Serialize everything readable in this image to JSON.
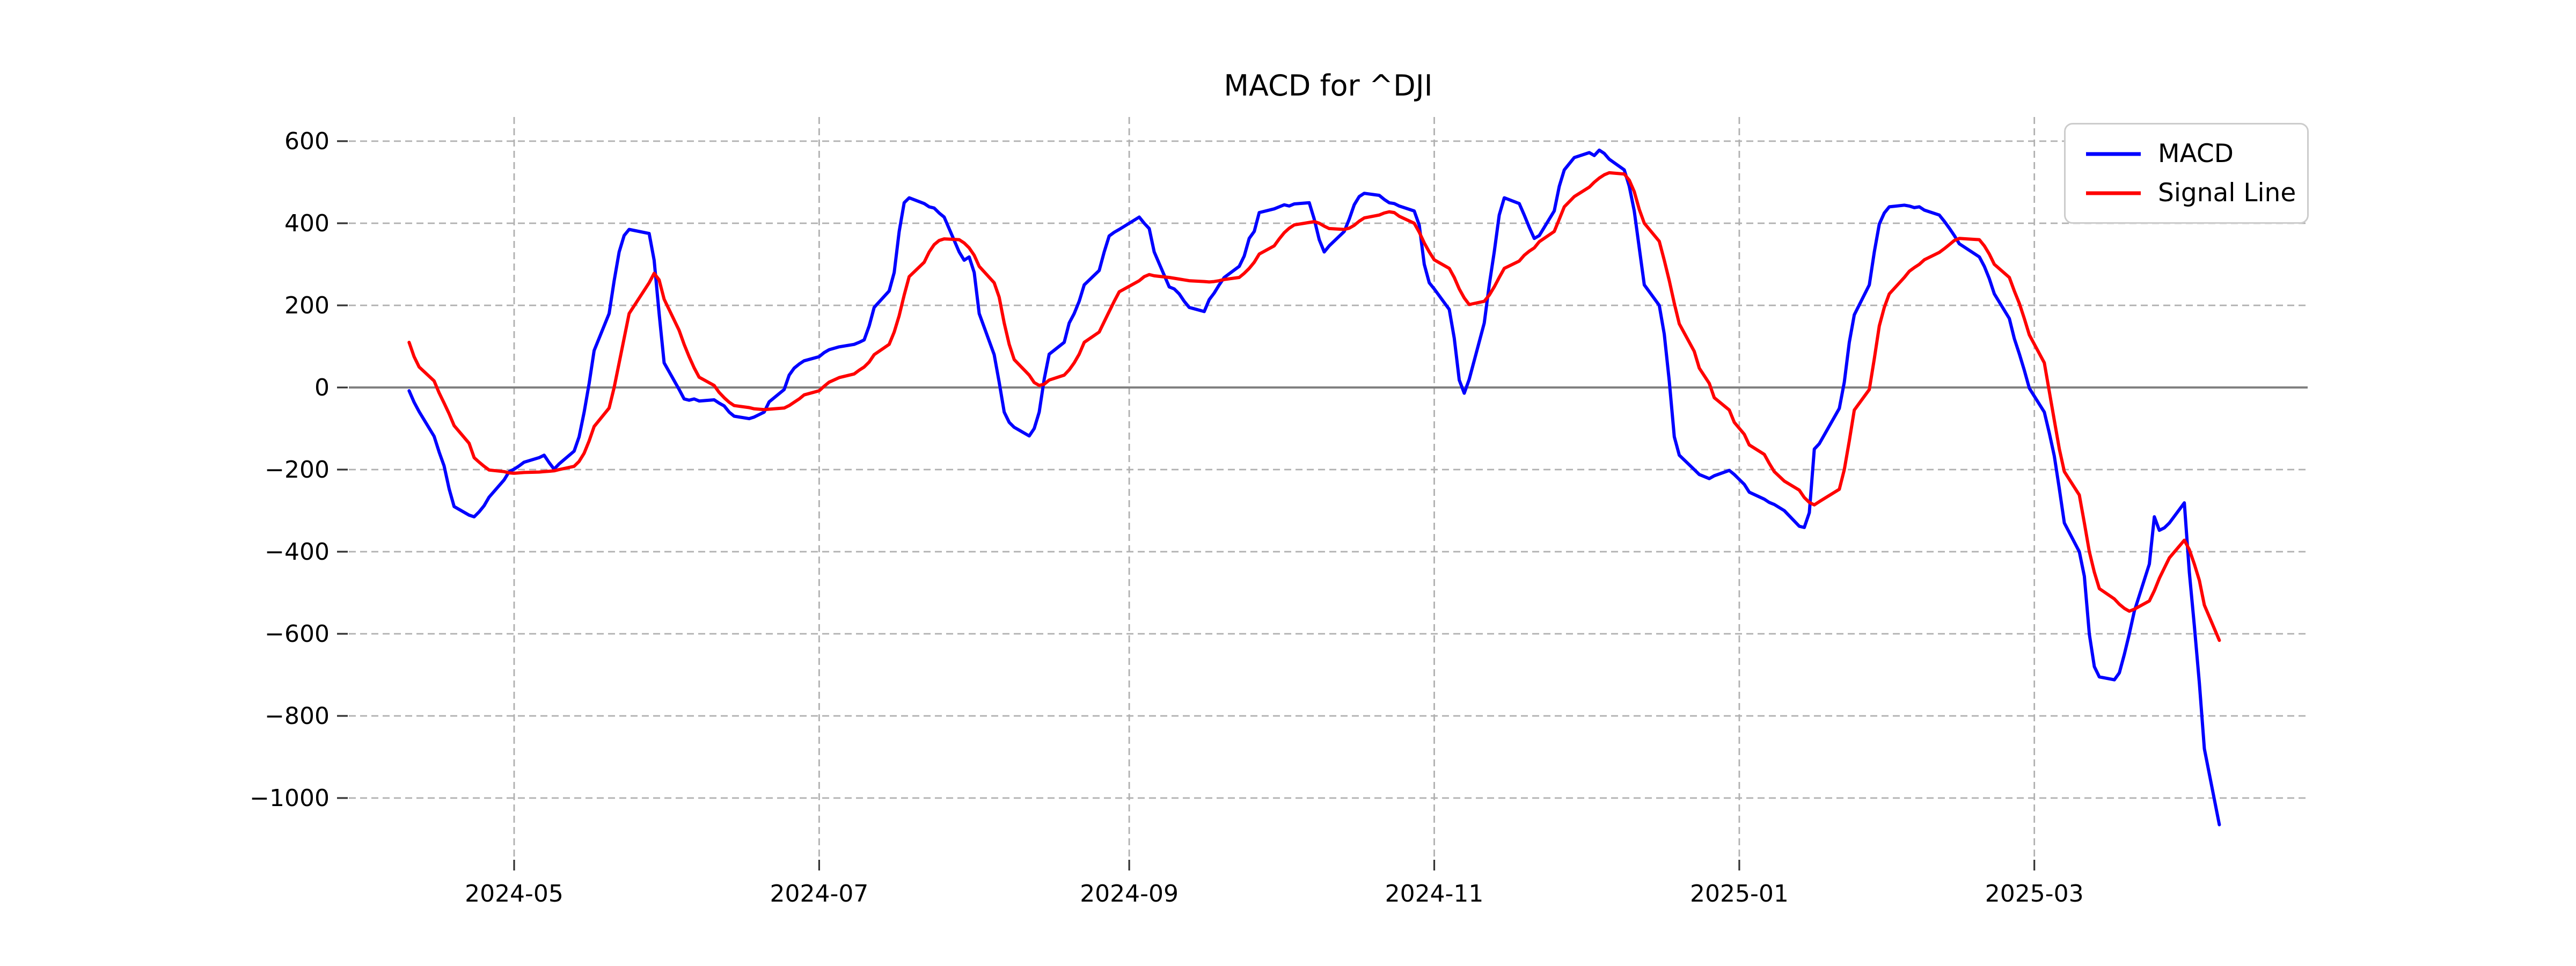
{
  "title": "MACD for ^DJI",
  "legend": {
    "items": [
      {
        "label": "MACD",
        "color": "#0000ff"
      },
      {
        "label": "Signal Line",
        "color": "#ff0000"
      }
    ]
  },
  "chart_data": {
    "type": "line",
    "title": "MACD for ^DJI",
    "xlabel": "",
    "ylabel": "",
    "grid": true,
    "grid_style": "dashed",
    "grid_color": "#b0b0b0",
    "zero_line": true,
    "zero_line_color": "#808080",
    "background": "#ffffff",
    "legend_position": "upper right",
    "ylim": [
      -1148,
      659
    ],
    "xlim": [
      "2024-03-29",
      "2025-04-24"
    ],
    "y_ticks": [
      {
        "value": 600,
        "label": "600"
      },
      {
        "value": 400,
        "label": "400"
      },
      {
        "value": 200,
        "label": "200"
      },
      {
        "value": 0,
        "label": "0"
      },
      {
        "value": -200,
        "label": "−200"
      },
      {
        "value": -400,
        "label": "−400"
      },
      {
        "value": -600,
        "label": "−600"
      },
      {
        "value": -800,
        "label": "−800"
      },
      {
        "value": -1000,
        "label": "−1000"
      }
    ],
    "x_ticks": [
      {
        "date": "2024-05-01",
        "label": "2024-05"
      },
      {
        "date": "2024-07-01",
        "label": "2024-07"
      },
      {
        "date": "2024-09-01",
        "label": "2024-09"
      },
      {
        "date": "2024-11-01",
        "label": "2024-11"
      },
      {
        "date": "2025-01-01",
        "label": "2025-01"
      },
      {
        "date": "2025-03-01",
        "label": "2025-03"
      }
    ],
    "dates": [
      "2024-04-10",
      "2024-04-11",
      "2024-04-12",
      "2024-04-15",
      "2024-04-16",
      "2024-04-17",
      "2024-04-18",
      "2024-04-19",
      "2024-04-22",
      "2024-04-23",
      "2024-04-24",
      "2024-04-25",
      "2024-04-26",
      "2024-04-29",
      "2024-04-30",
      "2024-05-01",
      "2024-05-02",
      "2024-05-03",
      "2024-05-06",
      "2024-05-07",
      "2024-05-08",
      "2024-05-09",
      "2024-05-10",
      "2024-05-13",
      "2024-05-14",
      "2024-05-15",
      "2024-05-16",
      "2024-05-17",
      "2024-05-20",
      "2024-05-21",
      "2024-05-22",
      "2024-05-23",
      "2024-05-24",
      "2024-05-28",
      "2024-05-29",
      "2024-05-30",
      "2024-05-31",
      "2024-06-03",
      "2024-06-04",
      "2024-06-05",
      "2024-06-06",
      "2024-06-07",
      "2024-06-10",
      "2024-06-11",
      "2024-06-12",
      "2024-06-13",
      "2024-06-14",
      "2024-06-17",
      "2024-06-18",
      "2024-06-20",
      "2024-06-21",
      "2024-06-24",
      "2024-06-25",
      "2024-06-26",
      "2024-06-27",
      "2024-06-28",
      "2024-07-01",
      "2024-07-02",
      "2024-07-03",
      "2024-07-05",
      "2024-07-08",
      "2024-07-09",
      "2024-07-10",
      "2024-07-11",
      "2024-07-12",
      "2024-07-15",
      "2024-07-16",
      "2024-07-17",
      "2024-07-18",
      "2024-07-19",
      "2024-07-22",
      "2024-07-23",
      "2024-07-24",
      "2024-07-25",
      "2024-07-26",
      "2024-07-29",
      "2024-07-30",
      "2024-07-31",
      "2024-08-01",
      "2024-08-02",
      "2024-08-05",
      "2024-08-06",
      "2024-08-07",
      "2024-08-08",
      "2024-08-09",
      "2024-08-12",
      "2024-08-13",
      "2024-08-14",
      "2024-08-15",
      "2024-08-16",
      "2024-08-19",
      "2024-08-20",
      "2024-08-21",
      "2024-08-22",
      "2024-08-23",
      "2024-08-26",
      "2024-08-27",
      "2024-08-28",
      "2024-08-29",
      "2024-08-30",
      "2024-09-03",
      "2024-09-04",
      "2024-09-05",
      "2024-09-06",
      "2024-09-09",
      "2024-09-10",
      "2024-09-11",
      "2024-09-12",
      "2024-09-13",
      "2024-09-16",
      "2024-09-17",
      "2024-09-18",
      "2024-09-19",
      "2024-09-20",
      "2024-09-23",
      "2024-09-24",
      "2024-09-25",
      "2024-09-26",
      "2024-09-27",
      "2024-09-30",
      "2024-10-01",
      "2024-10-02",
      "2024-10-03",
      "2024-10-04",
      "2024-10-07",
      "2024-10-08",
      "2024-10-09",
      "2024-10-10",
      "2024-10-11",
      "2024-10-14",
      "2024-10-15",
      "2024-10-16",
      "2024-10-17",
      "2024-10-18",
      "2024-10-21",
      "2024-10-22",
      "2024-10-23",
      "2024-10-24",
      "2024-10-25",
      "2024-10-28",
      "2024-10-29",
      "2024-10-30",
      "2024-10-31",
      "2024-11-01",
      "2024-11-04",
      "2024-11-05",
      "2024-11-06",
      "2024-11-07",
      "2024-11-08",
      "2024-11-11",
      "2024-11-12",
      "2024-11-13",
      "2024-11-14",
      "2024-11-15",
      "2024-11-18",
      "2024-11-19",
      "2024-11-20",
      "2024-11-21",
      "2024-11-22",
      "2024-11-25",
      "2024-11-26",
      "2024-11-27",
      "2024-11-29",
      "2024-12-02",
      "2024-12-03",
      "2024-12-04",
      "2024-12-05",
      "2024-12-06",
      "2024-12-09",
      "2024-12-10",
      "2024-12-11",
      "2024-12-12",
      "2024-12-13",
      "2024-12-16",
      "2024-12-17",
      "2024-12-18",
      "2024-12-19",
      "2024-12-20",
      "2024-12-23",
      "2024-12-24",
      "2024-12-26",
      "2024-12-27",
      "2024-12-30",
      "2024-12-31",
      "2025-01-02",
      "2025-01-03",
      "2025-01-06",
      "2025-01-07",
      "2025-01-08",
      "2025-01-10",
      "2025-01-13",
      "2025-01-14",
      "2025-01-15",
      "2025-01-16",
      "2025-01-17",
      "2025-01-21",
      "2025-01-22",
      "2025-01-23",
      "2025-01-24",
      "2025-01-27",
      "2025-01-28",
      "2025-01-29",
      "2025-01-30",
      "2025-01-31",
      "2025-02-03",
      "2025-02-04",
      "2025-02-05",
      "2025-02-06",
      "2025-02-07",
      "2025-02-10",
      "2025-02-11",
      "2025-02-12",
      "2025-02-13",
      "2025-02-14",
      "2025-02-18",
      "2025-02-19",
      "2025-02-20",
      "2025-02-21",
      "2025-02-24",
      "2025-02-25",
      "2025-02-26",
      "2025-02-27",
      "2025-02-28",
      "2025-03-03",
      "2025-03-04",
      "2025-03-05",
      "2025-03-06",
      "2025-03-07",
      "2025-03-10",
      "2025-03-11",
      "2025-03-12",
      "2025-03-13",
      "2025-03-14",
      "2025-03-17",
      "2025-03-18",
      "2025-03-19",
      "2025-03-20",
      "2025-03-21",
      "2025-03-24",
      "2025-03-25",
      "2025-03-26",
      "2025-03-27",
      "2025-03-28",
      "2025-03-31",
      "2025-04-01",
      "2025-04-02",
      "2025-04-03",
      "2025-04-04",
      "2025-04-07"
    ],
    "series": [
      {
        "name": "MACD",
        "color": "#0000ff",
        "values": [
          -8,
          -36,
          -59,
          -119,
          -157,
          -191,
          -247,
          -290,
          -311,
          -315,
          -303,
          -288,
          -267,
          -225,
          -205,
          -199,
          -191,
          -182,
          -171,
          -165,
          -183,
          -199,
          -186,
          -155,
          -120,
          -60,
          10,
          90,
          180,
          260,
          330,
          370,
          385,
          375,
          310,
          180,
          60,
          -5,
          -28,
          -31,
          -28,
          -33,
          -30,
          -38,
          -45,
          -60,
          -70,
          -76,
          -72,
          -60,
          -35,
          -5,
          30,
          47,
          57,
          65,
          75,
          85,
          92,
          99,
          105,
          110,
          116,
          150,
          195,
          235,
          280,
          380,
          450,
          462,
          448,
          440,
          437,
          425,
          415,
          330,
          310,
          318,
          280,
          180,
          80,
          13,
          -60,
          -85,
          -97,
          -118,
          -100,
          -60,
          20,
          81,
          110,
          157,
          180,
          210,
          250,
          285,
          330,
          369,
          378,
          385,
          415,
          400,
          387,
          330,
          245,
          240,
          228,
          210,
          195,
          185,
          214,
          230,
          250,
          268,
          295,
          320,
          363,
          380,
          426,
          435,
          440,
          445,
          442,
          447,
          450,
          410,
          360,
          330,
          345,
          380,
          410,
          445,
          465,
          473,
          468,
          458,
          450,
          448,
          442,
          430,
          395,
          300,
          255,
          240,
          190,
          120,
          18,
          -14,
          20,
          157,
          250,
          330,
          420,
          462,
          448,
          420,
          390,
          363,
          370,
          430,
          490,
          530,
          560,
          572,
          565,
          578,
          570,
          556,
          530,
          490,
          430,
          340,
          250,
          200,
          130,
          15,
          -120,
          -165,
          -200,
          -212,
          -222,
          -215,
          -202,
          -212,
          -236,
          -255,
          -272,
          -280,
          -285,
          -300,
          -338,
          -341,
          -305,
          -150,
          -137,
          -51,
          13,
          110,
          177,
          250,
          330,
          398,
          425,
          440,
          444,
          442,
          438,
          440,
          432,
          420,
          405,
          388,
          370,
          350,
          318,
          295,
          265,
          228,
          168,
          119,
          82,
          42,
          -2,
          -60,
          -111,
          -167,
          -247,
          -330,
          -400,
          -460,
          -601,
          -680,
          -705,
          -712,
          -695,
          -650,
          -600,
          -545,
          -430,
          -315,
          -348,
          -342,
          -330,
          -281,
          -450,
          -580,
          -720,
          -880,
          -1065
        ]
      },
      {
        "name": "Signal Line",
        "color": "#ff0000",
        "values": [
          110,
          75,
          50,
          16,
          -13,
          -38,
          -64,
          -93,
          -136,
          -171,
          -182,
          -192,
          -201,
          -205,
          -208,
          -209,
          -208,
          -207,
          -206,
          -205,
          -204,
          -203,
          -200,
          -192,
          -180,
          -160,
          -130,
          -95,
          -50,
          0,
          60,
          120,
          180,
          255,
          278,
          262,
          215,
          139,
          105,
          75,
          48,
          25,
          5,
          -12,
          -25,
          -36,
          -44,
          -49,
          -52,
          -54,
          -53,
          -50,
          -44,
          -36,
          -28,
          -18,
          -8,
          3,
          13,
          24,
          33,
          42,
          50,
          62,
          80,
          105,
          135,
          175,
          225,
          270,
          305,
          330,
          348,
          358,
          362,
          360,
          352,
          340,
          322,
          295,
          255,
          220,
          157,
          105,
          68,
          30,
          12,
          5,
          8,
          18,
          30,
          43,
          60,
          81,
          110,
          135,
          160,
          185,
          210,
          233,
          260,
          270,
          275,
          272,
          268,
          266,
          264,
          262,
          260,
          258,
          257,
          258,
          260,
          263,
          268,
          278,
          290,
          305,
          325,
          345,
          362,
          377,
          388,
          396,
          402,
          404,
          400,
          393,
          387,
          385,
          388,
          395,
          405,
          413,
          420,
          425,
          428,
          426,
          417,
          400,
          378,
          352,
          330,
          311,
          290,
          268,
          240,
          218,
          202,
          210,
          225,
          245,
          268,
          290,
          308,
          322,
          332,
          340,
          355,
          380,
          410,
          440,
          465,
          488,
          500,
          510,
          518,
          523,
          520,
          505,
          477,
          434,
          400,
          356,
          310,
          260,
          205,
          155,
          88,
          47,
          10,
          -25,
          -55,
          -85,
          -114,
          -140,
          -163,
          -185,
          -205,
          -228,
          -250,
          -268,
          -280,
          -286,
          -278,
          -248,
          -200,
          -130,
          -55,
          -5,
          70,
          150,
          195,
          228,
          268,
          283,
          292,
          300,
          311,
          329,
          338,
          348,
          358,
          363,
          360,
          345,
          325,
          300,
          268,
          235,
          205,
          168,
          128,
          60,
          -10,
          -80,
          -150,
          -205,
          -262,
          -330,
          -400,
          -450,
          -490,
          -515,
          -528,
          -538,
          -545,
          -540,
          -520,
          -495,
          -465,
          -440,
          -415,
          -372,
          -395,
          -430,
          -470,
          -530,
          -616
        ]
      }
    ]
  }
}
